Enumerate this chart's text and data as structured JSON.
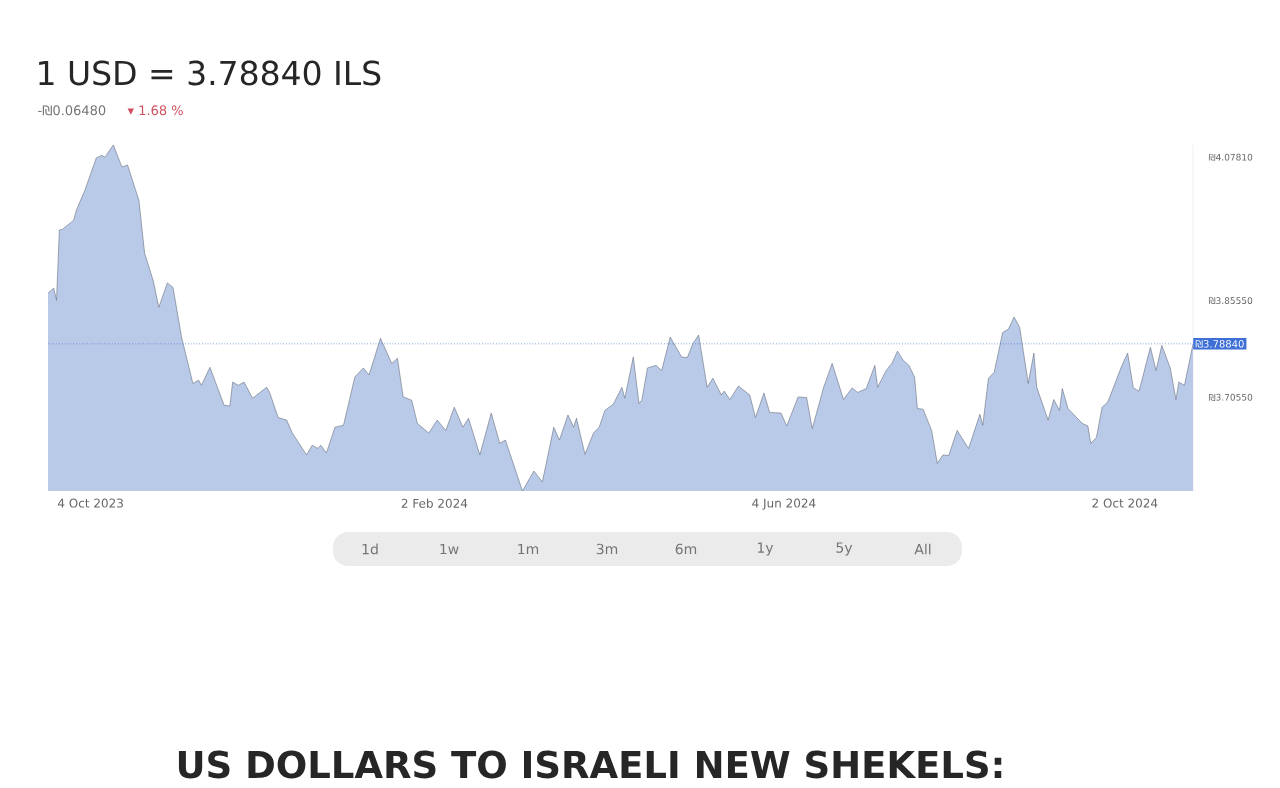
{
  "chart_data": {
    "type": "area",
    "title": "1 USD = 3.78840 ILS",
    "subtitle": "-₪0.06480",
    "annotations": [
      "▾ 1.68 %",
      "US DOLLARS TO ISRAELI NEW SHEKELS:",
      "1d",
      "1w",
      "1m",
      "3m",
      "6m",
      "1y",
      "5y",
      "All"
    ],
    "x": [
      "2023-09-19",
      "2023-09-21",
      "2023-09-22",
      "2023-09-23",
      "2023-09-24",
      "2023-09-28",
      "2023-09-29",
      "2023-10-02",
      "2023-10-06",
      "2023-10-08",
      "2023-10-09",
      "2023-10-12",
      "2023-10-15",
      "2023-10-17",
      "2023-10-21",
      "2023-10-23",
      "2023-10-26",
      "2023-10-28",
      "2023-10-31",
      "2023-11-02",
      "2023-11-05",
      "2023-11-09",
      "2023-11-11",
      "2023-11-12",
      "2023-11-15",
      "2023-11-20",
      "2023-11-22",
      "2023-11-23",
      "2023-11-25",
      "2023-11-27",
      "2023-11-30",
      "2023-12-05",
      "2023-12-06",
      "2023-12-09",
      "2023-12-12",
      "2023-12-14",
      "2023-12-19",
      "2023-12-21",
      "2023-12-23",
      "2023-12-24",
      "2023-12-26",
      "2023-12-29",
      "2024-01-01",
      "2024-01-05",
      "2024-01-08",
      "2024-01-10",
      "2024-01-14",
      "2024-01-18",
      "2024-01-20",
      "2024-01-22",
      "2024-01-25",
      "2024-01-27",
      "2024-01-31",
      "2024-02-03",
      "2024-02-06",
      "2024-02-09",
      "2024-02-12",
      "2024-02-14",
      "2024-02-18",
      "2024-02-22",
      "2024-02-25",
      "2024-02-27",
      "2024-03-04",
      "2024-03-08",
      "2024-03-11",
      "2024-03-15",
      "2024-03-17",
      "2024-03-20",
      "2024-03-22",
      "2024-03-23",
      "2024-03-26",
      "2024-03-29",
      "2024-03-31",
      "2024-04-02",
      "2024-04-05",
      "2024-04-08",
      "2024-04-09",
      "2024-04-12",
      "2024-04-14",
      "2024-04-15",
      "2024-04-17",
      "2024-04-20",
      "2024-04-22",
      "2024-04-25",
      "2024-04-29",
      "2024-05-01",
      "2024-05-03",
      "2024-05-05",
      "2024-05-08",
      "2024-05-10",
      "2024-05-13",
      "2024-05-14",
      "2024-05-16",
      "2024-05-19",
      "2024-05-23",
      "2024-05-25",
      "2024-05-28",
      "2024-05-30",
      "2024-06-03",
      "2024-06-05",
      "2024-06-09",
      "2024-06-12",
      "2024-06-14",
      "2024-06-18",
      "2024-06-21",
      "2024-06-25",
      "2024-06-28",
      "2024-06-30",
      "2024-07-03",
      "2024-07-06",
      "2024-07-07",
      "2024-07-10",
      "2024-07-12",
      "2024-07-14",
      "2024-07-16",
      "2024-07-18",
      "2024-07-20",
      "2024-07-21",
      "2024-07-23",
      "2024-07-26",
      "2024-07-28",
      "2024-07-30",
      "2024-08-01",
      "2024-08-04",
      "2024-08-08",
      "2024-08-12",
      "2024-08-13",
      "2024-08-15",
      "2024-08-17",
      "2024-08-20",
      "2024-08-22",
      "2024-08-24",
      "2024-08-26",
      "2024-08-29",
      "2024-08-31",
      "2024-09-01",
      "2024-09-05",
      "2024-09-07",
      "2024-09-09",
      "2024-09-10",
      "2024-09-12",
      "2024-09-17",
      "2024-09-19",
      "2024-09-20",
      "2024-09-22",
      "2024-09-24",
      "2024-09-26",
      "2024-10-01",
      "2024-10-03",
      "2024-10-05",
      "2024-10-07",
      "2024-10-08",
      "2024-10-11",
      "2024-10-13",
      "2024-10-15",
      "2024-10-18",
      "2024-10-20",
      "2024-10-21",
      "2024-10-23",
      "2024-10-26"
    ],
    "values": [
      3.867,
      3.875,
      3.856,
      3.965,
      3.966,
      3.98,
      3.996,
      4.027,
      4.077,
      4.081,
      4.078,
      4.097,
      4.063,
      4.066,
      4.011,
      3.929,
      3.887,
      3.845,
      3.883,
      3.876,
      3.799,
      3.727,
      3.732,
      3.724,
      3.752,
      3.693,
      3.692,
      3.729,
      3.724,
      3.729,
      3.704,
      3.721,
      3.713,
      3.674,
      3.67,
      3.65,
      3.616,
      3.631,
      3.626,
      3.631,
      3.619,
      3.659,
      3.662,
      3.737,
      3.751,
      3.74,
      3.797,
      3.758,
      3.766,
      3.706,
      3.701,
      3.665,
      3.65,
      3.67,
      3.654,
      3.69,
      3.659,
      3.673,
      3.616,
      3.681,
      3.634,
      3.639,
      3.56,
      3.591,
      3.574,
      3.659,
      3.639,
      3.678,
      3.659,
      3.673,
      3.617,
      3.65,
      3.659,
      3.685,
      3.695,
      3.721,
      3.704,
      3.768,
      3.696,
      3.701,
      3.751,
      3.755,
      3.747,
      3.799,
      3.768,
      3.767,
      3.789,
      3.802,
      3.721,
      3.735,
      3.709,
      3.715,
      3.702,
      3.723,
      3.709,
      3.674,
      3.712,
      3.682,
      3.681,
      3.661,
      3.706,
      3.705,
      3.657,
      3.721,
      3.758,
      3.702,
      3.72,
      3.713,
      3.719,
      3.755,
      3.721,
      3.747,
      3.758,
      3.777,
      3.763,
      3.755,
      3.737,
      3.688,
      3.687,
      3.654,
      3.603,
      3.616,
      3.615,
      3.654,
      3.626,
      3.679,
      3.662,
      3.735,
      3.744,
      3.806,
      3.811,
      3.83,
      3.814,
      3.727,
      3.774,
      3.721,
      3.67,
      3.702,
      3.685,
      3.719,
      3.688,
      3.665,
      3.661,
      3.634,
      3.643,
      3.69,
      3.698,
      3.755,
      3.774,
      3.72,
      3.715,
      3.732,
      3.783,
      3.747,
      3.786,
      3.751,
      3.702,
      3.729,
      3.724,
      3.788
    ],
    "color": "#b9c9e8",
    "xlim": [
      "2023-09-19",
      "2024-10-26"
    ],
    "ylim": [
      3.56,
      4.097
    ],
    "xticks": [
      {
        "value": "2023-10-04",
        "label": "4 Oct 2023"
      },
      {
        "value": "2024-02-02",
        "label": "2 Feb 2024"
      },
      {
        "value": "2024-06-04",
        "label": "4 Jun 2024"
      },
      {
        "value": "2024-10-02",
        "label": "2 Oct 2024"
      }
    ],
    "yticks": [
      {
        "value": 4.0781,
        "label": "₪4.07810"
      },
      {
        "value": 3.8555,
        "label": "₪3.85550"
      },
      {
        "value": 3.7055,
        "label": "₪3.70550"
      }
    ],
    "ref_lines": [
      {
        "axis": "y",
        "value": 3.7884,
        "label": "₪3.78840",
        "color": "#3d6fd6",
        "line_style": "dotted"
      }
    ]
  }
}
